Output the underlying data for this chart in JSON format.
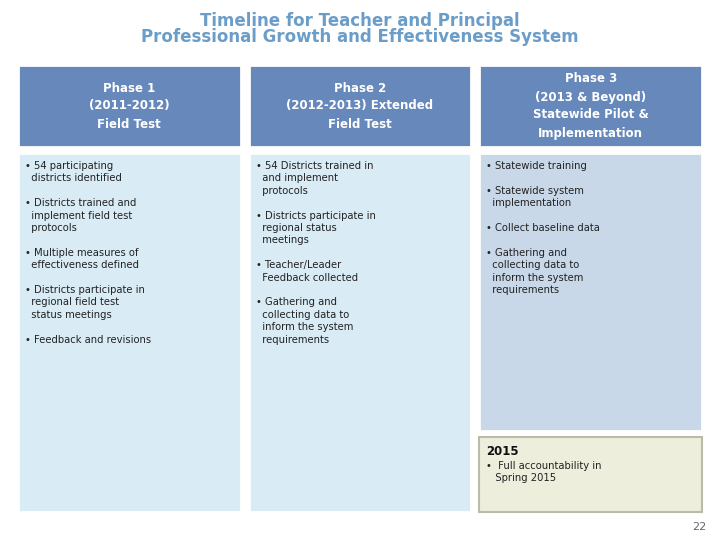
{
  "title_line1": "Timeline for Teacher and Principal",
  "title_line2": "Professional Growth and Effectiveness System",
  "title_color": "#6B9DC9",
  "background_color": "#FFFFFF",
  "phases": [
    {
      "header": "Phase 1\n(2011-2012)\nField Test",
      "header_color": "#6688BB",
      "body_color": "#D9EBF5",
      "bullets": "• 54 participating\n  districts identified\n\n• Districts trained and\n  implement field test\n  protocols\n\n• Multiple measures of\n  effectiveness defined\n\n• Districts participate in\n  regional field test\n  status meetings\n\n• Feedback and revisions"
    },
    {
      "header": "Phase 2\n(2012-2013) Extended\nField Test",
      "header_color": "#6688BB",
      "body_color": "#D9EBF5",
      "bullets": "• 54 Districts trained in\n  and implement\n  protocols\n\n• Districts participate in\n  regional status\n  meetings\n\n• Teacher/Leader\n  Feedback collected\n\n• Gathering and\n  collecting data to\n  inform the system\n  requirements"
    },
    {
      "header": "Phase 3\n(2013 & Beyond)\nStatewide Pilot &\nImplementation",
      "header_color": "#6688BB",
      "body_color": "#C8D8E8",
      "bullets": "• Statewide training\n\n• Statewide system\n  implementation\n\n• Collect baseline data\n\n• Gathering and\n  collecting data to\n  inform the system\n  requirements",
      "extra_header": "2015",
      "extra_bullets": "•  Full accountability in\n   Spring 2015",
      "extra_body_color": "#EEEEDD",
      "extra_border_color": "#BBBBAA"
    }
  ]
}
